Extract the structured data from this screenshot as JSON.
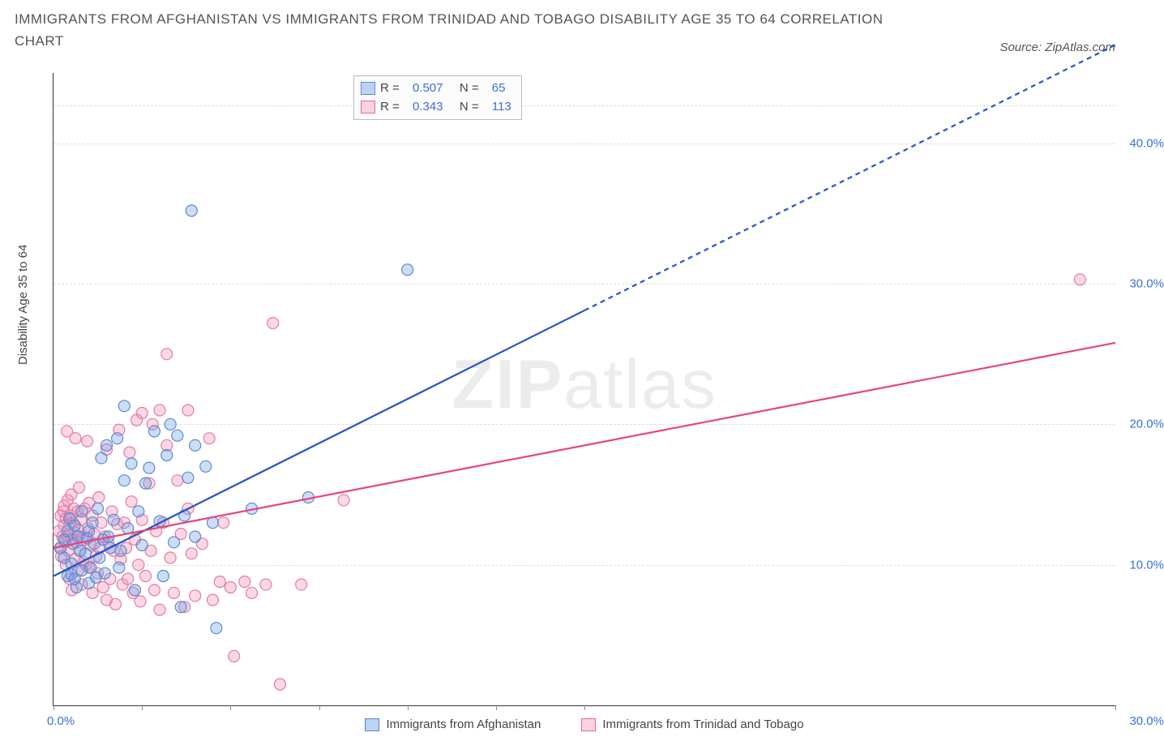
{
  "title": "IMMIGRANTS FROM AFGHANISTAN VS IMMIGRANTS FROM TRINIDAD AND TOBAGO DISABILITY AGE 35 TO 64 CORRELATION CHART",
  "source": "Source: ZipAtlas.com",
  "ylabel": "Disability Age 35 to 64",
  "watermark_bold": "ZIP",
  "watermark_rest": "atlas",
  "xlim": [
    0,
    30
  ],
  "ylim": [
    0,
    45
  ],
  "xtick_labels": {
    "0": "0.0%",
    "30": "30.0%"
  },
  "ytick_labels": {
    "10": "10.0%",
    "20": "20.0%",
    "30": "30.0%",
    "40": "40.0%"
  },
  "xtick_positions": [
    0,
    2.5,
    5,
    7.5,
    10,
    12.5,
    15,
    30
  ],
  "grid_y": [
    10,
    20,
    30,
    40,
    42.7
  ],
  "grid_color": "#dddddd",
  "background_color": "#ffffff",
  "series": [
    {
      "name": "Immigrants from Afghanistan",
      "key": "afghanistan",
      "color_fill": "rgba(108,158,231,0.35)",
      "color_stroke": "#5b8bd0",
      "swatch_fill": "#bcd3f4",
      "swatch_border": "#5b8bd0",
      "R": "0.507",
      "N": "65",
      "marker_radius": 7,
      "line": {
        "solid_to_x": 15,
        "y_at_0": 9.2,
        "y_at_30": 47,
        "color": "#2653c9",
        "width": 2.2,
        "dash": "6,5"
      },
      "points": [
        [
          0.2,
          11.2
        ],
        [
          0.3,
          10.5
        ],
        [
          0.3,
          11.8
        ],
        [
          0.4,
          9.2
        ],
        [
          0.4,
          12.4
        ],
        [
          0.45,
          13.3
        ],
        [
          0.5,
          10.1
        ],
        [
          0.5,
          9.3
        ],
        [
          0.55,
          11.5
        ],
        [
          0.6,
          12.8
        ],
        [
          0.6,
          9.0
        ],
        [
          0.65,
          8.4
        ],
        [
          0.7,
          12.0
        ],
        [
          0.75,
          11.0
        ],
        [
          0.8,
          13.8
        ],
        [
          0.8,
          9.6
        ],
        [
          0.9,
          10.8
        ],
        [
          0.95,
          11.9
        ],
        [
          1.0,
          8.7
        ],
        [
          1.0,
          12.4
        ],
        [
          1.05,
          9.8
        ],
        [
          1.1,
          13.0
        ],
        [
          1.15,
          11.5
        ],
        [
          1.2,
          9.1
        ],
        [
          1.25,
          14.0
        ],
        [
          1.3,
          10.5
        ],
        [
          1.35,
          17.6
        ],
        [
          1.4,
          11.8
        ],
        [
          1.45,
          9.4
        ],
        [
          1.5,
          18.5
        ],
        [
          1.55,
          12.0
        ],
        [
          1.6,
          11.2
        ],
        [
          1.7,
          13.2
        ],
        [
          1.8,
          19.0
        ],
        [
          1.85,
          9.8
        ],
        [
          1.9,
          11.0
        ],
        [
          2.0,
          21.3
        ],
        [
          2.0,
          16.0
        ],
        [
          2.1,
          12.6
        ],
        [
          2.2,
          17.2
        ],
        [
          2.3,
          8.2
        ],
        [
          2.4,
          13.8
        ],
        [
          2.5,
          11.4
        ],
        [
          2.6,
          15.8
        ],
        [
          2.7,
          16.9
        ],
        [
          2.85,
          19.5
        ],
        [
          3.0,
          13.1
        ],
        [
          3.1,
          9.2
        ],
        [
          3.2,
          17.8
        ],
        [
          3.3,
          20.0
        ],
        [
          3.4,
          11.6
        ],
        [
          3.5,
          19.2
        ],
        [
          3.6,
          7.0
        ],
        [
          3.7,
          13.5
        ],
        [
          3.8,
          16.2
        ],
        [
          4.0,
          18.5
        ],
        [
          4.0,
          12.0
        ],
        [
          4.3,
          17.0
        ],
        [
          4.5,
          13.0
        ],
        [
          4.6,
          5.5
        ],
        [
          5.6,
          14.0
        ],
        [
          7.2,
          14.8
        ],
        [
          3.9,
          35.2
        ],
        [
          10.0,
          31.0
        ]
      ]
    },
    {
      "name": "Immigrants from Trinidad and Tobago",
      "key": "trinidad",
      "color_fill": "rgba(244,143,177,0.35)",
      "color_stroke": "#e77aa5",
      "swatch_fill": "#fbd2de",
      "swatch_border": "#e86896",
      "R": "0.343",
      "N": "113",
      "marker_radius": 7,
      "line": {
        "solid_to_x": 30,
        "y_at_0": 11.2,
        "y_at_30": 25.8,
        "color": "#e7457c",
        "width": 2.2,
        "dash": ""
      },
      "points": [
        [
          0.15,
          12.4
        ],
        [
          0.18,
          11.2
        ],
        [
          0.2,
          13.5
        ],
        [
          0.22,
          10.6
        ],
        [
          0.25,
          12.0
        ],
        [
          0.28,
          13.8
        ],
        [
          0.3,
          12.8
        ],
        [
          0.3,
          14.2
        ],
        [
          0.32,
          11.6
        ],
        [
          0.35,
          10.0
        ],
        [
          0.35,
          13.3
        ],
        [
          0.38,
          19.5
        ],
        [
          0.4,
          12.0
        ],
        [
          0.4,
          14.6
        ],
        [
          0.42,
          11.0
        ],
        [
          0.45,
          9.0
        ],
        [
          0.45,
          12.9
        ],
        [
          0.48,
          13.5
        ],
        [
          0.5,
          15.0
        ],
        [
          0.5,
          11.8
        ],
        [
          0.52,
          8.2
        ],
        [
          0.55,
          13.0
        ],
        [
          0.58,
          14.0
        ],
        [
          0.6,
          12.3
        ],
        [
          0.6,
          10.4
        ],
        [
          0.62,
          19.0
        ],
        [
          0.65,
          11.6
        ],
        [
          0.68,
          13.8
        ],
        [
          0.7,
          9.6
        ],
        [
          0.7,
          12.5
        ],
        [
          0.72,
          15.5
        ],
        [
          0.75,
          11.0
        ],
        [
          0.78,
          13.2
        ],
        [
          0.8,
          8.6
        ],
        [
          0.82,
          12.0
        ],
        [
          0.85,
          10.2
        ],
        [
          0.88,
          14.0
        ],
        [
          0.9,
          11.8
        ],
        [
          0.92,
          10.0
        ],
        [
          0.95,
          18.8
        ],
        [
          0.98,
          12.6
        ],
        [
          1.0,
          14.4
        ],
        [
          1.0,
          9.8
        ],
        [
          1.05,
          11.4
        ],
        [
          1.1,
          13.5
        ],
        [
          1.1,
          8.0
        ],
        [
          1.15,
          12.2
        ],
        [
          1.2,
          10.6
        ],
        [
          1.25,
          9.4
        ],
        [
          1.28,
          14.8
        ],
        [
          1.3,
          11.2
        ],
        [
          1.35,
          13.0
        ],
        [
          1.4,
          8.4
        ],
        [
          1.45,
          12.0
        ],
        [
          1.5,
          7.5
        ],
        [
          1.5,
          18.2
        ],
        [
          1.55,
          11.6
        ],
        [
          1.6,
          9.0
        ],
        [
          1.65,
          13.8
        ],
        [
          1.7,
          11.0
        ],
        [
          1.75,
          7.2
        ],
        [
          1.8,
          12.9
        ],
        [
          1.85,
          19.6
        ],
        [
          1.9,
          10.4
        ],
        [
          1.95,
          8.6
        ],
        [
          2.0,
          13.0
        ],
        [
          2.05,
          11.2
        ],
        [
          2.1,
          9.0
        ],
        [
          2.15,
          18.0
        ],
        [
          2.2,
          14.5
        ],
        [
          2.25,
          8.0
        ],
        [
          2.3,
          11.8
        ],
        [
          2.35,
          20.3
        ],
        [
          2.4,
          10.0
        ],
        [
          2.45,
          7.4
        ],
        [
          2.5,
          20.8
        ],
        [
          2.5,
          13.2
        ],
        [
          2.6,
          9.2
        ],
        [
          2.7,
          15.8
        ],
        [
          2.75,
          11.0
        ],
        [
          2.8,
          20.0
        ],
        [
          2.85,
          8.2
        ],
        [
          2.9,
          12.4
        ],
        [
          3.0,
          6.8
        ],
        [
          3.0,
          21.0
        ],
        [
          3.1,
          13.0
        ],
        [
          3.2,
          18.5
        ],
        [
          3.3,
          10.5
        ],
        [
          3.4,
          8.0
        ],
        [
          3.5,
          16.0
        ],
        [
          3.6,
          12.2
        ],
        [
          3.7,
          7.0
        ],
        [
          3.8,
          21.0
        ],
        [
          3.8,
          14.0
        ],
        [
          3.9,
          10.8
        ],
        [
          4.0,
          7.8
        ],
        [
          4.2,
          11.5
        ],
        [
          4.4,
          19.0
        ],
        [
          4.5,
          7.5
        ],
        [
          4.7,
          8.8
        ],
        [
          4.8,
          13.0
        ],
        [
          5.0,
          8.4
        ],
        [
          5.1,
          3.5
        ],
        [
          5.4,
          8.8
        ],
        [
          5.6,
          8.0
        ],
        [
          6.0,
          8.6
        ],
        [
          6.2,
          27.2
        ],
        [
          6.4,
          1.5
        ],
        [
          7.0,
          8.6
        ],
        [
          3.2,
          25.0
        ],
        [
          8.2,
          14.6
        ],
        [
          29.0,
          30.3
        ]
      ]
    }
  ]
}
